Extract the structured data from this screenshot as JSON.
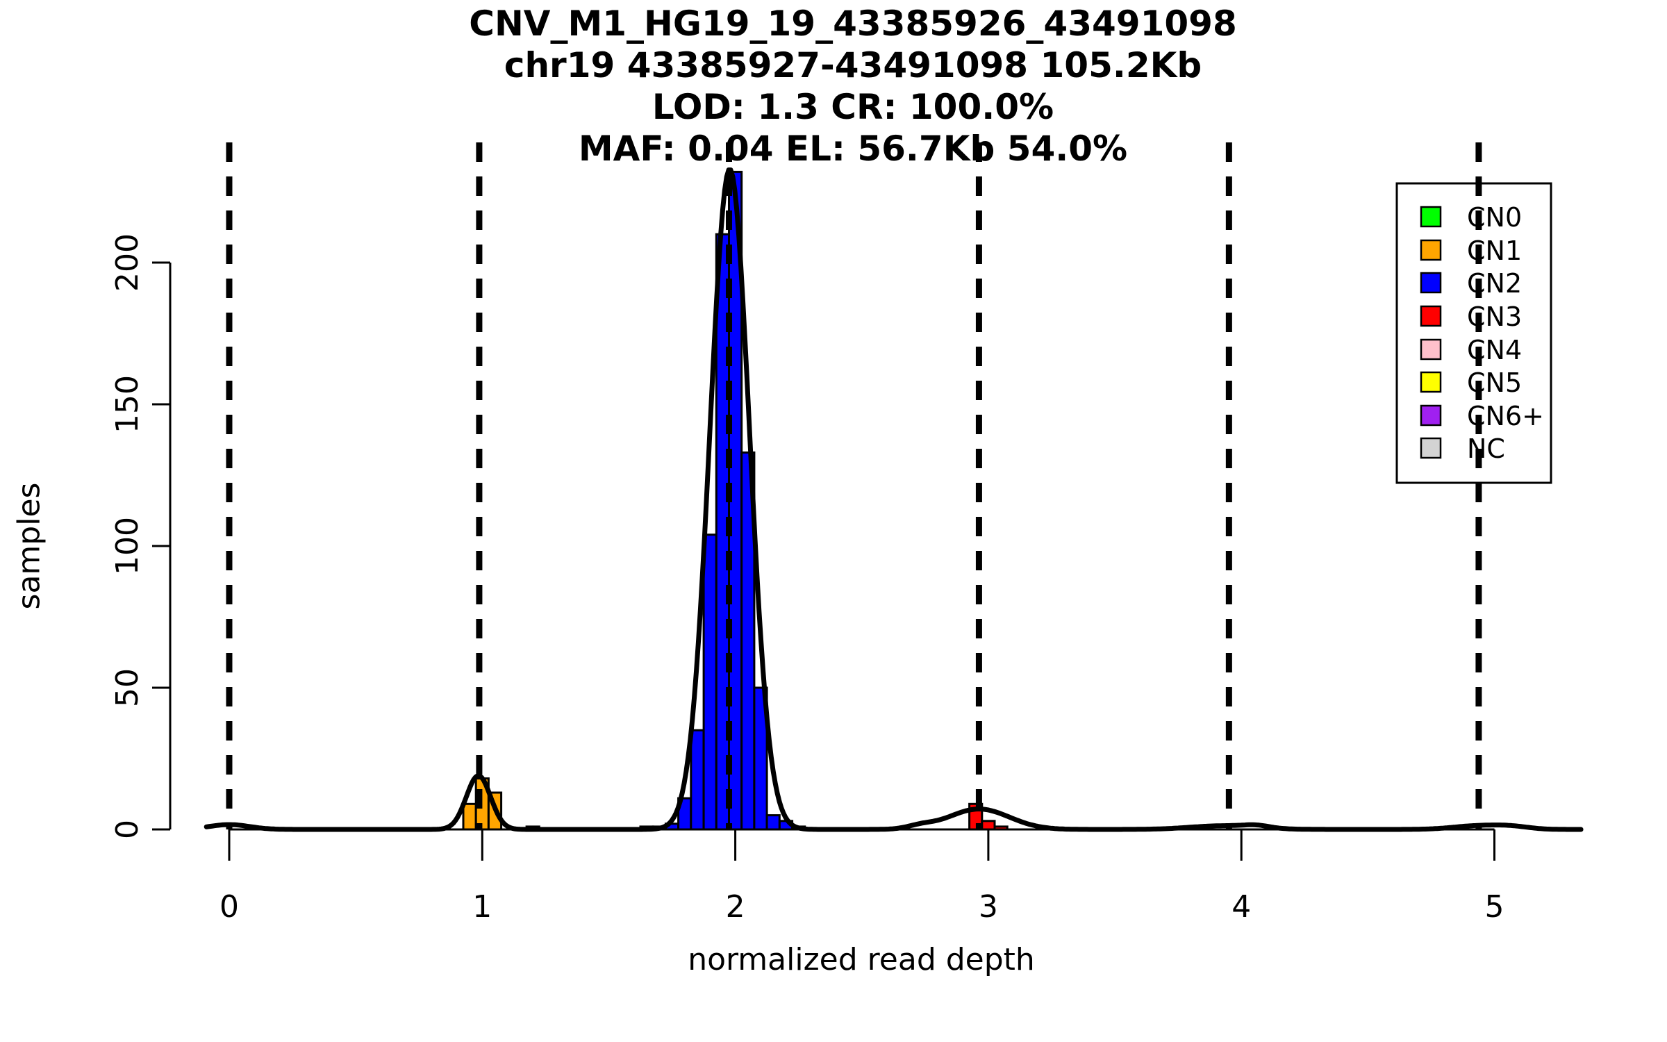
{
  "title": {
    "lines": [
      "CNV_M1_HG19_19_43385926_43491098",
      "chr19 43385927-43491098 105.2Kb",
      "LOD: 1.3 CR: 100.0%",
      "MAF: 0.04 EL: 56.7Kb 54.0%"
    ]
  },
  "axes": {
    "x": {
      "label": "normalized read depth",
      "ticks": [
        "0",
        "1",
        "2",
        "3",
        "4",
        "5"
      ],
      "tick_values": [
        0,
        1,
        2,
        3,
        4,
        5
      ],
      "range": [
        -0.09,
        5.35
      ]
    },
    "y": {
      "label": "samples",
      "ticks": [
        "0",
        "50",
        "100",
        "150",
        "200"
      ],
      "tick_values": [
        0,
        50,
        100,
        150,
        200
      ],
      "range": [
        0,
        242
      ]
    }
  },
  "legend": {
    "items": [
      {
        "label": "CN0",
        "color": "#00FF00"
      },
      {
        "label": "CN1",
        "color": "#FFA500"
      },
      {
        "label": "CN2",
        "color": "#0000FF"
      },
      {
        "label": "CN3",
        "color": "#FF0000"
      },
      {
        "label": "CN4",
        "color": "#FFC0CB"
      },
      {
        "label": "CN5",
        "color": "#FFFF00"
      },
      {
        "label": "CN6+",
        "color": "#A020F0"
      },
      {
        "label": "NC",
        "color": "#D3D3D3"
      }
    ]
  },
  "chart_data": {
    "type": "histogram",
    "title": "CNV_M1_HG19_19_43385926_43491098",
    "subtitle_lines": [
      "chr19 43385927-43491098 105.2Kb",
      "LOD: 1.3 CR: 100.0%",
      "MAF: 0.04 EL: 56.7Kb 54.0%"
    ],
    "xlabel": "normalized read depth",
    "ylabel": "samples",
    "xlim": [
      -0.09,
      5.35
    ],
    "ylim": [
      0,
      242
    ],
    "grid": false,
    "legend_position": "top-right",
    "bin_width": 0.05,
    "series": [
      {
        "name": "CN1",
        "color": "#FFA500",
        "bars": [
          {
            "x": 0.95,
            "n": 9
          },
          {
            "x": 1.0,
            "n": 18
          },
          {
            "x": 1.05,
            "n": 13
          },
          {
            "x": 1.2,
            "n": 1
          }
        ]
      },
      {
        "name": "CN2",
        "color": "#0000FF",
        "bars": [
          {
            "x": 1.65,
            "n": 1
          },
          {
            "x": 1.7,
            "n": 1
          },
          {
            "x": 1.75,
            "n": 2
          },
          {
            "x": 1.8,
            "n": 11
          },
          {
            "x": 1.85,
            "n": 35
          },
          {
            "x": 1.9,
            "n": 104
          },
          {
            "x": 1.95,
            "n": 210
          },
          {
            "x": 2.0,
            "n": 232
          },
          {
            "x": 2.05,
            "n": 133
          },
          {
            "x": 2.1,
            "n": 50
          },
          {
            "x": 2.15,
            "n": 5
          },
          {
            "x": 2.2,
            "n": 3
          },
          {
            "x": 2.25,
            "n": 1
          }
        ]
      },
      {
        "name": "CN3",
        "color": "#FF0000",
        "bars": [
          {
            "x": 2.95,
            "n": 9
          },
          {
            "x": 3.0,
            "n": 3
          },
          {
            "x": 3.05,
            "n": 1
          }
        ]
      }
    ],
    "density_curves": [
      {
        "mean": 0.0,
        "amplitude": 1.7,
        "sigma": 0.08
      },
      {
        "mean": 0.985,
        "amplitude": 19,
        "sigma": 0.048
      },
      {
        "mean": 1.978,
        "amplitude": 233,
        "sigma": 0.078
      },
      {
        "mean": 2.73,
        "amplitude": 1.0,
        "sigma": 0.05
      },
      {
        "mean": 2.963,
        "amplitude": 7.2,
        "sigma": 0.12
      },
      {
        "mean": 3.93,
        "amplitude": 1.3,
        "sigma": 0.13
      },
      {
        "mean": 4.06,
        "amplitude": 0.8,
        "sigma": 0.05
      },
      {
        "mean": 4.94,
        "amplitude": 1.3,
        "sigma": 0.1
      },
      {
        "mean": 5.07,
        "amplitude": 0.8,
        "sigma": 0.07
      }
    ],
    "cluster_mean_lines_x": [
      0,
      0.988,
      1.975,
      2.963,
      3.951,
      4.938
    ]
  }
}
